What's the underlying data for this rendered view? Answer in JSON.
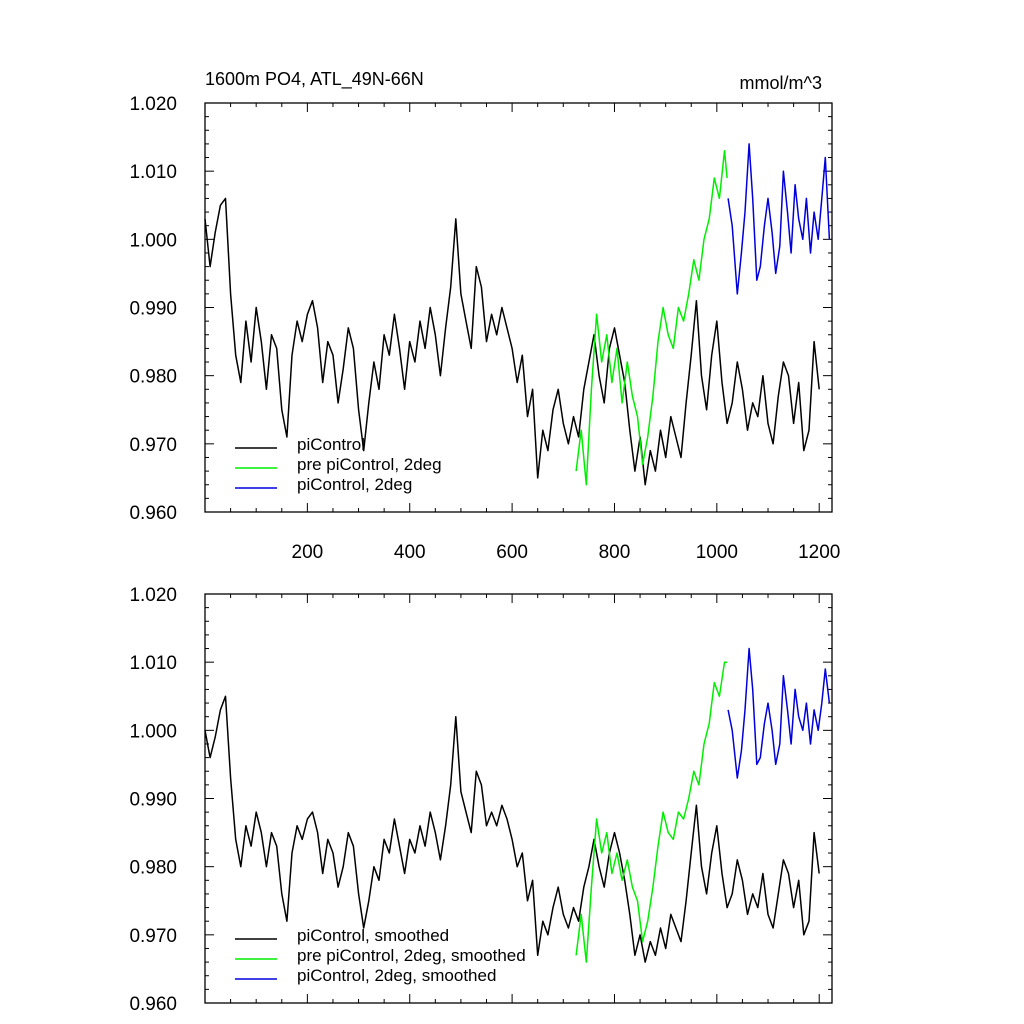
{
  "chart_data": [
    {
      "type": "line",
      "title": "1600m PO4, ATL_49N-66N",
      "units": "mmol/m^3",
      "xlim": [
        0,
        1225
      ],
      "ylim": [
        0.96,
        1.02
      ],
      "x_ticks": [
        200,
        400,
        600,
        800,
        1000,
        1200
      ],
      "x_tick_labels": [
        "200",
        "400",
        "600",
        "800",
        "1000",
        "1200"
      ],
      "y_ticks": [
        0.96,
        0.97,
        0.98,
        0.99,
        1.0,
        1.01,
        1.02
      ],
      "y_tick_labels": [
        "0.960",
        "0.970",
        "0.980",
        "0.990",
        "1.000",
        "1.010",
        "1.020"
      ],
      "legend_position": "bottom-left",
      "series": [
        {
          "name": "piControl",
          "color": "#000000",
          "x": [
            0,
            10,
            20,
            30,
            40,
            50,
            60,
            70,
            80,
            90,
            100,
            110,
            120,
            130,
            140,
            150,
            160,
            170,
            180,
            190,
            200,
            210,
            220,
            230,
            240,
            250,
            260,
            270,
            280,
            290,
            300,
            310,
            320,
            330,
            340,
            350,
            360,
            370,
            380,
            390,
            400,
            410,
            420,
            430,
            440,
            450,
            460,
            470,
            480,
            490,
            500,
            510,
            520,
            530,
            540,
            550,
            560,
            570,
            580,
            590,
            600,
            610,
            620,
            630,
            640,
            650,
            660,
            670,
            680,
            690,
            700,
            710,
            720,
            730,
            740,
            750,
            760,
            770,
            780,
            790,
            800,
            810,
            820,
            830,
            840,
            850,
            860,
            870,
            880,
            890,
            900,
            910,
            920,
            930,
            940,
            950,
            960,
            970,
            980,
            990,
            1000,
            1010,
            1020,
            1030,
            1040,
            1050,
            1060,
            1070,
            1080,
            1090,
            1100,
            1110,
            1120,
            1130,
            1140,
            1150,
            1160,
            1170,
            1180,
            1190,
            1200
          ],
          "y": [
            1.003,
            0.996,
            1.001,
            1.005,
            1.006,
            0.992,
            0.983,
            0.979,
            0.988,
            0.982,
            0.99,
            0.985,
            0.978,
            0.986,
            0.984,
            0.975,
            0.971,
            0.983,
            0.988,
            0.985,
            0.989,
            0.991,
            0.987,
            0.979,
            0.985,
            0.983,
            0.976,
            0.981,
            0.987,
            0.984,
            0.975,
            0.969,
            0.976,
            0.982,
            0.978,
            0.986,
            0.983,
            0.989,
            0.984,
            0.978,
            0.985,
            0.982,
            0.988,
            0.984,
            0.99,
            0.986,
            0.98,
            0.987,
            0.993,
            1.003,
            0.992,
            0.988,
            0.984,
            0.996,
            0.993,
            0.985,
            0.989,
            0.986,
            0.99,
            0.987,
            0.984,
            0.979,
            0.983,
            0.974,
            0.978,
            0.965,
            0.972,
            0.969,
            0.975,
            0.978,
            0.973,
            0.97,
            0.974,
            0.971,
            0.978,
            0.982,
            0.986,
            0.98,
            0.976,
            0.984,
            0.987,
            0.983,
            0.979,
            0.972,
            0.966,
            0.971,
            0.964,
            0.969,
            0.966,
            0.972,
            0.968,
            0.974,
            0.971,
            0.968,
            0.976,
            0.983,
            0.991,
            0.98,
            0.975,
            0.983,
            0.988,
            0.979,
            0.973,
            0.976,
            0.982,
            0.978,
            0.972,
            0.976,
            0.974,
            0.98,
            0.973,
            0.97,
            0.977,
            0.982,
            0.98,
            0.973,
            0.979,
            0.969,
            0.972,
            0.985,
            0.978
          ],
          "x_range": [
            0,
            1200
          ]
        },
        {
          "name": "pre piControl, 2deg",
          "color": "#00ee00",
          "x": [
            725,
            735,
            745,
            755,
            765,
            775,
            785,
            795,
            805,
            815,
            825,
            835,
            845,
            855,
            865,
            875,
            885,
            895,
            905,
            915,
            925,
            935,
            945,
            955,
            965,
            975,
            985,
            995,
            1005,
            1015,
            1020
          ],
          "y": [
            0.966,
            0.972,
            0.964,
            0.978,
            0.989,
            0.982,
            0.986,
            0.979,
            0.984,
            0.976,
            0.982,
            0.977,
            0.974,
            0.967,
            0.971,
            0.977,
            0.985,
            0.99,
            0.986,
            0.984,
            0.99,
            0.988,
            0.992,
            0.997,
            0.994,
            1.0,
            1.003,
            1.009,
            1.006,
            1.013,
            1.009
          ]
        },
        {
          "name": "piControl, 2deg",
          "color": "#0000dd",
          "x": [
            1022,
            1030,
            1040,
            1048,
            1055,
            1063,
            1070,
            1078,
            1085,
            1093,
            1100,
            1108,
            1115,
            1123,
            1130,
            1138,
            1145,
            1153,
            1160,
            1168,
            1175,
            1183,
            1190,
            1198,
            1205,
            1212,
            1220
          ],
          "y": [
            1.006,
            1.002,
            0.992,
            0.998,
            1.004,
            1.014,
            1.006,
            0.994,
            0.996,
            1.002,
            1.006,
            1.001,
            0.995,
            0.999,
            1.01,
            1.004,
            0.998,
            1.008,
            1.003,
            1.0,
            1.006,
            0.998,
            1.004,
            1.0,
            1.006,
            1.012,
            1.0
          ]
        }
      ]
    },
    {
      "type": "line",
      "title": "",
      "units": "",
      "xlim": [
        0,
        1225
      ],
      "ylim": [
        0.96,
        1.02
      ],
      "x_ticks": [
        200,
        400,
        600,
        800,
        1000,
        1200
      ],
      "x_tick_labels": [],
      "y_ticks": [
        0.96,
        0.97,
        0.98,
        0.99,
        1.0,
        1.01,
        1.02
      ],
      "y_tick_labels": [
        "0.960",
        "0.970",
        "0.980",
        "0.990",
        "1.000",
        "1.010",
        "1.020"
      ],
      "legend_position": "bottom-left",
      "series": [
        {
          "name": "piControl, smoothed",
          "color": "#000000",
          "x": [
            0,
            10,
            20,
            30,
            40,
            50,
            60,
            70,
            80,
            90,
            100,
            110,
            120,
            130,
            140,
            150,
            160,
            170,
            180,
            190,
            200,
            210,
            220,
            230,
            240,
            250,
            260,
            270,
            280,
            290,
            300,
            310,
            320,
            330,
            340,
            350,
            360,
            370,
            380,
            390,
            400,
            410,
            420,
            430,
            440,
            450,
            460,
            470,
            480,
            490,
            500,
            510,
            520,
            530,
            540,
            550,
            560,
            570,
            580,
            590,
            600,
            610,
            620,
            630,
            640,
            650,
            660,
            670,
            680,
            690,
            700,
            710,
            720,
            730,
            740,
            750,
            760,
            770,
            780,
            790,
            800,
            810,
            820,
            830,
            840,
            850,
            860,
            870,
            880,
            890,
            900,
            910,
            920,
            930,
            940,
            950,
            960,
            970,
            980,
            990,
            1000,
            1010,
            1020,
            1030,
            1040,
            1050,
            1060,
            1070,
            1080,
            1090,
            1100,
            1110,
            1120,
            1130,
            1140,
            1150,
            1160,
            1170,
            1180,
            1190,
            1200
          ],
          "y": [
            1.0,
            0.996,
            0.999,
            1.003,
            1.005,
            0.993,
            0.984,
            0.98,
            0.986,
            0.983,
            0.988,
            0.985,
            0.98,
            0.985,
            0.983,
            0.976,
            0.972,
            0.982,
            0.986,
            0.984,
            0.987,
            0.988,
            0.985,
            0.979,
            0.984,
            0.982,
            0.977,
            0.98,
            0.985,
            0.983,
            0.976,
            0.971,
            0.975,
            0.98,
            0.978,
            0.984,
            0.982,
            0.987,
            0.983,
            0.979,
            0.984,
            0.982,
            0.986,
            0.983,
            0.988,
            0.985,
            0.981,
            0.986,
            0.992,
            1.002,
            0.991,
            0.988,
            0.985,
            0.994,
            0.992,
            0.986,
            0.988,
            0.986,
            0.989,
            0.987,
            0.984,
            0.98,
            0.982,
            0.975,
            0.978,
            0.967,
            0.972,
            0.97,
            0.974,
            0.977,
            0.973,
            0.971,
            0.974,
            0.972,
            0.977,
            0.98,
            0.984,
            0.98,
            0.977,
            0.982,
            0.985,
            0.982,
            0.978,
            0.973,
            0.967,
            0.97,
            0.966,
            0.969,
            0.967,
            0.971,
            0.968,
            0.973,
            0.971,
            0.969,
            0.975,
            0.982,
            0.989,
            0.98,
            0.976,
            0.982,
            0.986,
            0.979,
            0.974,
            0.976,
            0.981,
            0.978,
            0.973,
            0.976,
            0.974,
            0.979,
            0.973,
            0.971,
            0.976,
            0.981,
            0.979,
            0.974,
            0.978,
            0.97,
            0.972,
            0.985,
            0.979
          ]
        },
        {
          "name": "pre piControl, 2deg, smoothed",
          "color": "#00ee00",
          "x": [
            725,
            735,
            745,
            755,
            765,
            775,
            785,
            795,
            805,
            815,
            825,
            835,
            845,
            855,
            865,
            875,
            885,
            895,
            905,
            915,
            925,
            935,
            945,
            955,
            965,
            975,
            985,
            995,
            1005,
            1015,
            1020
          ],
          "y": [
            0.967,
            0.973,
            0.966,
            0.977,
            0.987,
            0.982,
            0.985,
            0.979,
            0.982,
            0.978,
            0.981,
            0.977,
            0.975,
            0.969,
            0.972,
            0.977,
            0.983,
            0.988,
            0.985,
            0.984,
            0.988,
            0.987,
            0.99,
            0.994,
            0.992,
            0.998,
            1.001,
            1.007,
            1.005,
            1.01,
            1.01
          ]
        },
        {
          "name": "piControl, 2deg, smoothed",
          "color": "#0000dd",
          "x": [
            1022,
            1030,
            1040,
            1048,
            1055,
            1063,
            1070,
            1078,
            1085,
            1093,
            1100,
            1108,
            1115,
            1123,
            1130,
            1138,
            1145,
            1153,
            1160,
            1168,
            1175,
            1183,
            1190,
            1198,
            1205,
            1212,
            1220
          ],
          "y": [
            1.003,
            1.0,
            0.993,
            0.997,
            1.003,
            1.012,
            1.006,
            0.995,
            0.996,
            1.001,
            1.004,
            1.0,
            0.995,
            0.998,
            1.008,
            1.003,
            0.998,
            1.006,
            1.002,
            1.0,
            1.004,
            0.998,
            1.003,
            1.0,
            1.004,
            1.009,
            1.004
          ]
        }
      ]
    }
  ]
}
